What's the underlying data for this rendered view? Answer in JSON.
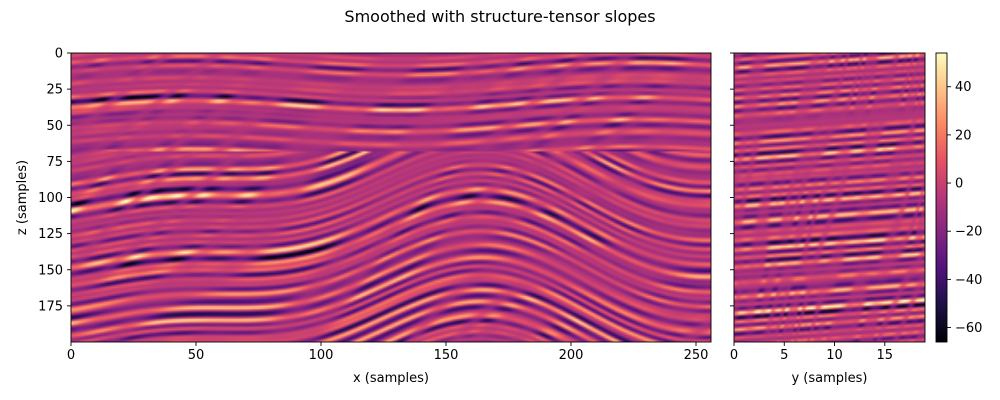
{
  "chart_data": {
    "type": "heatmap",
    "title": "Smoothed with structure-tensor slopes",
    "colormap": "magma",
    "panels": [
      {
        "name": "inline-section",
        "xlabel": "x (samples)",
        "ylabel": "z (samples)",
        "xlim": [
          0,
          256
        ],
        "ylim": [
          200,
          0
        ],
        "xticks": [
          0,
          50,
          100,
          150,
          200,
          250
        ],
        "yticks": [
          0,
          25,
          50,
          75,
          100,
          125,
          150,
          175
        ]
      },
      {
        "name": "crossline-section",
        "xlabel": "y (samples)",
        "ylabel": "",
        "xlim": [
          0,
          19
        ],
        "ylim": [
          200,
          0
        ],
        "xticks": [
          0,
          5,
          10,
          15
        ],
        "yticks": [
          0,
          25,
          50,
          75,
          100,
          125,
          150,
          175
        ]
      }
    ],
    "colorbar": {
      "vmin": -66,
      "vmax": 54,
      "ticks": [
        -60,
        -40,
        -20,
        0,
        20,
        40
      ]
    }
  }
}
